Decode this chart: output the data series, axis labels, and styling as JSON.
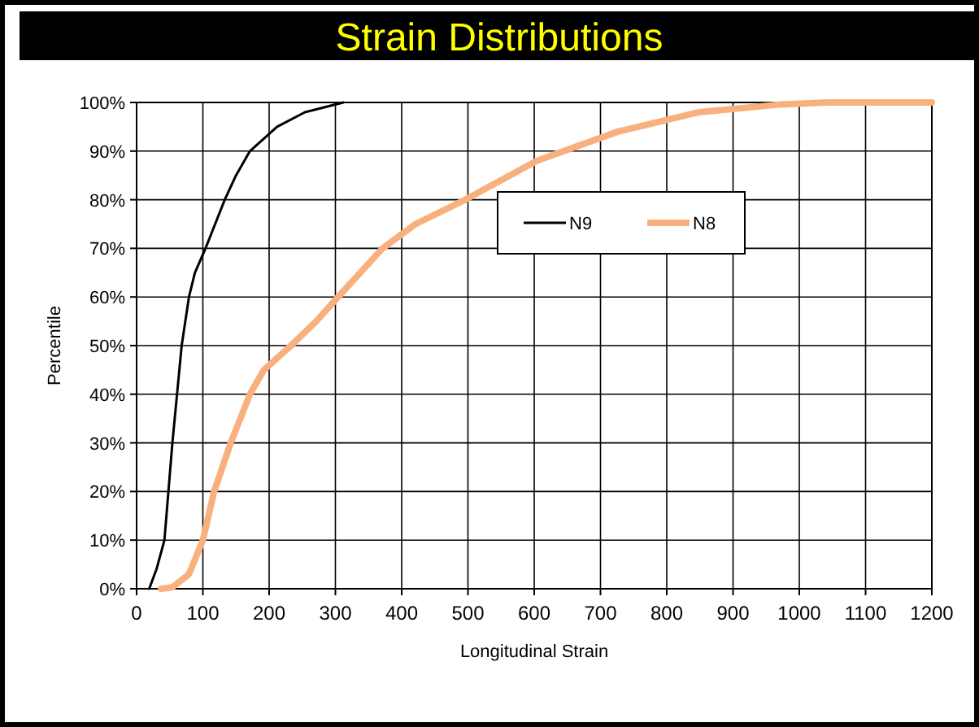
{
  "chart_data": {
    "type": "line",
    "title": "Strain Distributions",
    "xlabel": "Longitudinal Strain",
    "ylabel": "Percentile",
    "xlim": [
      0,
      1200
    ],
    "xticks": [
      0,
      100,
      200,
      300,
      400,
      500,
      600,
      700,
      800,
      900,
      1000,
      1100,
      1200
    ],
    "ylim": [
      0,
      100
    ],
    "yticks": [
      {
        "value": 0,
        "label": "0%"
      },
      {
        "value": 10,
        "label": "10%"
      },
      {
        "value": 20,
        "label": "20%"
      },
      {
        "value": 30,
        "label": "30%"
      },
      {
        "value": 40,
        "label": "40%"
      },
      {
        "value": 50,
        "label": "50%"
      },
      {
        "value": 60,
        "label": "60%"
      },
      {
        "value": 70,
        "label": "70%"
      },
      {
        "value": 80,
        "label": "80%"
      },
      {
        "value": 90,
        "label": "90%"
      },
      {
        "value": 100,
        "label": "100%"
      }
    ],
    "grid": true,
    "legend": "top right",
    "marker": "none",
    "line_style": "solid",
    "series": [
      {
        "name": "N9",
        "color": "#000000",
        "x": [
          19,
          30,
          42,
          48,
          54,
          61,
          68,
          79,
          88,
          104,
          133,
          150,
          171,
          212,
          254,
          312
        ],
        "values": [
          0,
          4,
          10,
          20,
          30,
          40,
          50,
          60,
          65,
          70,
          80,
          85,
          90,
          95,
          98,
          100
        ]
      },
      {
        "name": "N8",
        "color": "#f9b07f",
        "x": [
          37,
          54,
          79,
          100,
          117,
          142,
          171,
          192,
          233,
          271,
          304,
          371,
          421,
          496,
          604,
          726,
          849,
          972,
          1045,
          1200
        ],
        "values": [
          0,
          0.3,
          3,
          10,
          20,
          30,
          40,
          45,
          50,
          55,
          60,
          70,
          75,
          80,
          88,
          94,
          98,
          99.6,
          100,
          100
        ]
      }
    ]
  }
}
